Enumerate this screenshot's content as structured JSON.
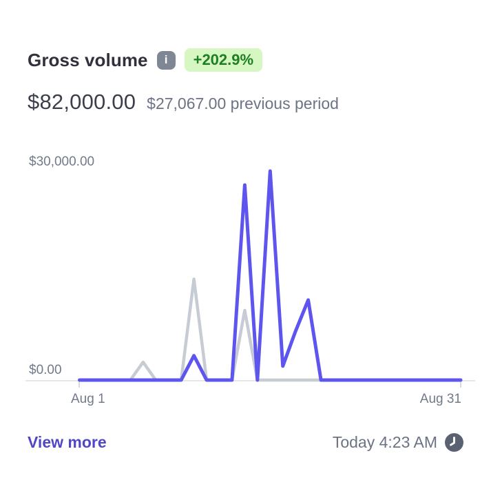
{
  "header": {
    "title": "Gross volume",
    "info_icon_glyph": "i",
    "change_badge": "+202.9%",
    "current_value": "$82,000.00",
    "previous_value": "$27,067.00 previous period"
  },
  "chart_data": {
    "type": "line",
    "title": "Gross volume, daily, Aug 1 - Aug 31",
    "x_unit": "day of August",
    "x": [
      1,
      2,
      3,
      4,
      5,
      6,
      7,
      8,
      9,
      10,
      11,
      12,
      13,
      14,
      15,
      16,
      17,
      18,
      19,
      20,
      21,
      22,
      23,
      24,
      25,
      26,
      27,
      28,
      29,
      30,
      31
    ],
    "series": [
      {
        "name": "current period (gross volume, $82,000.00 total)",
        "color": "#5d55ee",
        "values": [
          0,
          0,
          0,
          0,
          0,
          0,
          0,
          0,
          0,
          3500,
          0,
          0,
          0,
          28000,
          0,
          30000,
          2000,
          7000,
          11500,
          0,
          0,
          0,
          0,
          0,
          0,
          0,
          0,
          0,
          0,
          0,
          0
        ]
      },
      {
        "name": "previous period ($27,067.00 total)",
        "color": "#c7cbd4",
        "values": [
          0,
          0,
          0,
          0,
          0,
          2567,
          0,
          0,
          0,
          14500,
          0,
          0,
          0,
          10000,
          0,
          0,
          0,
          0,
          0,
          0,
          0,
          0,
          0,
          0,
          0,
          0,
          0,
          0,
          0,
          0,
          0
        ]
      }
    ],
    "ylim": [
      0,
      30000
    ],
    "y_tick_labels": [
      "$0.00",
      "$30,000.00"
    ],
    "x_tick_labels": [
      "Aug 1",
      "Aug 31"
    ],
    "grid": "baseline only",
    "legend": "none"
  },
  "footer": {
    "view_more": "View more",
    "timestamp": "Today 4:23 AM"
  },
  "colors": {
    "accent": "#5d55ee",
    "previous-line": "#c7cbd4",
    "badge-bg": "#d7f7c2",
    "badge-text": "#1e7e22",
    "link": "#5246c8",
    "muted": "#6b7384"
  }
}
